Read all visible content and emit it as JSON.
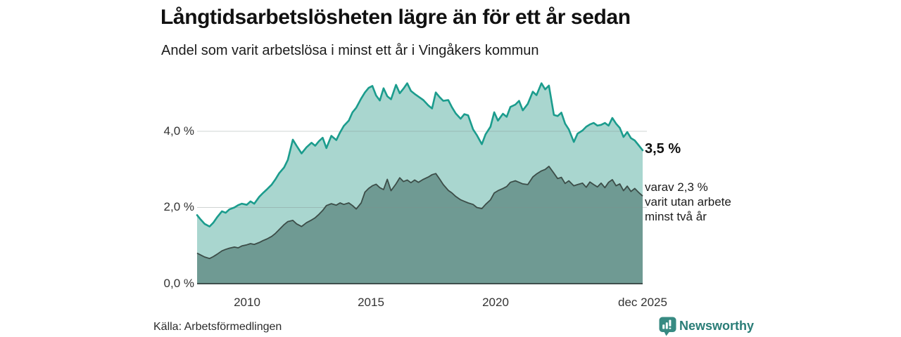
{
  "header": {
    "title": "Långtidsarbetslösheten lägre än för ett år sedan",
    "subtitle": "Andel som varit arbetslösa i minst ett år i Vingåkers kommun"
  },
  "labels": {
    "latest_total": "3,5 %",
    "annotation_lines": [
      "varav 2,3 %",
      "varit utan arbete",
      "minst två år"
    ]
  },
  "footer": {
    "source": "Källa: Arbetsförmedlingen",
    "brand": "Newsworthy"
  },
  "colors": {
    "total_line": "#1b9c8d",
    "total_fill": "#a9d6cf",
    "two_year_line": "#3c4d48",
    "two_year_fill": "#6f9a93",
    "gridline": "rgba(130,142,140,0.38)",
    "axis": "#3f4f4d",
    "brand_teal": "#2a7d77",
    "logo_bg": "#378a82"
  },
  "chart_data": {
    "type": "area",
    "title": "Långtidsarbetslösheten lägre än för ett år sedan",
    "subtitle": "Andel som varit arbetslösa i minst ett år i Vingåkers kommun",
    "unit": "%",
    "grid": true,
    "legend": "none",
    "x_range": [
      2008.0,
      2025.92
    ],
    "ylim": [
      0,
      5.6
    ],
    "x_ticks": [
      {
        "label": "2010",
        "value": 2010
      },
      {
        "label": "2015",
        "value": 2015
      },
      {
        "label": "2020",
        "value": 2020
      },
      {
        "label": "dec 2025",
        "value": 2025.92
      }
    ],
    "y_ticks": [
      {
        "label": "0,0 %",
        "value": 0
      },
      {
        "label": "2,0 %",
        "value": 2
      },
      {
        "label": "4,0 %",
        "value": 4
      }
    ],
    "series_meta": [
      {
        "name": "Arbetslösa minst ett år",
        "latest": 3.5,
        "latest_label": "3,5 %",
        "line_color": "#1b9c8d",
        "fill_color": "#a9d6cf"
      },
      {
        "name": "Arbetslösa minst två år",
        "latest": 2.3,
        "annotation": "varav 2,3 % varit utan arbete minst två år",
        "line_color": "#3c4d48",
        "fill_color": "#6f9a93"
      }
    ],
    "columns": [
      "year",
      "minst_ett_ar_pct",
      "minst_tva_ar_pct"
    ],
    "points": [
      [
        2008.0,
        1.8,
        0.8
      ],
      [
        2008.15,
        1.68,
        0.75
      ],
      [
        2008.3,
        1.57,
        0.7
      ],
      [
        2008.5,
        1.5,
        0.66
      ],
      [
        2008.65,
        1.6,
        0.71
      ],
      [
        2008.8,
        1.74,
        0.77
      ],
      [
        2009.0,
        1.9,
        0.86
      ],
      [
        2009.15,
        1.86,
        0.9
      ],
      [
        2009.3,
        1.95,
        0.93
      ],
      [
        2009.5,
        2.0,
        0.96
      ],
      [
        2009.65,
        2.06,
        0.94
      ],
      [
        2009.8,
        2.1,
        0.99
      ],
      [
        2010.0,
        2.07,
        1.02
      ],
      [
        2010.15,
        2.16,
        1.05
      ],
      [
        2010.3,
        2.1,
        1.03
      ],
      [
        2010.5,
        2.28,
        1.08
      ],
      [
        2010.65,
        2.38,
        1.13
      ],
      [
        2010.8,
        2.47,
        1.17
      ],
      [
        2011.0,
        2.6,
        1.24
      ],
      [
        2011.15,
        2.74,
        1.32
      ],
      [
        2011.3,
        2.9,
        1.42
      ],
      [
        2011.5,
        3.05,
        1.55
      ],
      [
        2011.65,
        3.25,
        1.63
      ],
      [
        2011.85,
        3.78,
        1.66
      ],
      [
        2012.0,
        3.62,
        1.57
      ],
      [
        2012.2,
        3.42,
        1.5
      ],
      [
        2012.4,
        3.58,
        1.6
      ],
      [
        2012.6,
        3.7,
        1.67
      ],
      [
        2012.75,
        3.62,
        1.73
      ],
      [
        2012.9,
        3.74,
        1.82
      ],
      [
        2013.05,
        3.83,
        1.92
      ],
      [
        2013.2,
        3.56,
        2.05
      ],
      [
        2013.4,
        3.88,
        2.1
      ],
      [
        2013.6,
        3.77,
        2.06
      ],
      [
        2013.75,
        3.97,
        2.12
      ],
      [
        2013.9,
        4.14,
        2.08
      ],
      [
        2014.1,
        4.28,
        2.12
      ],
      [
        2014.25,
        4.5,
        2.05
      ],
      [
        2014.4,
        4.62,
        1.96
      ],
      [
        2014.6,
        4.86,
        2.12
      ],
      [
        2014.75,
        5.02,
        2.4
      ],
      [
        2014.9,
        5.14,
        2.5
      ],
      [
        2015.05,
        5.19,
        2.57
      ],
      [
        2015.2,
        4.94,
        2.61
      ],
      [
        2015.35,
        4.81,
        2.52
      ],
      [
        2015.5,
        5.13,
        2.47
      ],
      [
        2015.65,
        4.92,
        2.74
      ],
      [
        2015.8,
        4.84,
        2.44
      ],
      [
        2016.0,
        5.22,
        2.62
      ],
      [
        2016.15,
        5.0,
        2.78
      ],
      [
        2016.3,
        5.12,
        2.68
      ],
      [
        2016.45,
        5.26,
        2.72
      ],
      [
        2016.6,
        5.06,
        2.65
      ],
      [
        2016.75,
        4.98,
        2.72
      ],
      [
        2016.9,
        4.91,
        2.66
      ],
      [
        2017.1,
        4.82,
        2.74
      ],
      [
        2017.3,
        4.68,
        2.8
      ],
      [
        2017.45,
        4.6,
        2.86
      ],
      [
        2017.6,
        5.02,
        2.89
      ],
      [
        2017.75,
        4.9,
        2.75
      ],
      [
        2017.9,
        4.8,
        2.6
      ],
      [
        2018.1,
        4.82,
        2.45
      ],
      [
        2018.25,
        4.63,
        2.38
      ],
      [
        2018.4,
        4.47,
        2.29
      ],
      [
        2018.6,
        4.33,
        2.2
      ],
      [
        2018.75,
        4.45,
        2.16
      ],
      [
        2018.9,
        4.42,
        2.12
      ],
      [
        2019.1,
        4.05,
        2.08
      ],
      [
        2019.25,
        3.9,
        2.0
      ],
      [
        2019.45,
        3.66,
        1.97
      ],
      [
        2019.6,
        3.92,
        2.08
      ],
      [
        2019.8,
        4.12,
        2.2
      ],
      [
        2019.95,
        4.5,
        2.38
      ],
      [
        2020.1,
        4.28,
        2.44
      ],
      [
        2020.3,
        4.46,
        2.5
      ],
      [
        2020.45,
        4.38,
        2.55
      ],
      [
        2020.6,
        4.64,
        2.66
      ],
      [
        2020.8,
        4.7,
        2.7
      ],
      [
        2020.95,
        4.8,
        2.66
      ],
      [
        2021.1,
        4.55,
        2.62
      ],
      [
        2021.3,
        4.72,
        2.6
      ],
      [
        2021.5,
        5.04,
        2.8
      ],
      [
        2021.65,
        4.95,
        2.88
      ],
      [
        2021.85,
        5.26,
        2.96
      ],
      [
        2022.0,
        5.1,
        3.0
      ],
      [
        2022.15,
        5.2,
        3.08
      ],
      [
        2022.35,
        4.43,
        2.9
      ],
      [
        2022.5,
        4.4,
        2.76
      ],
      [
        2022.65,
        4.49,
        2.79
      ],
      [
        2022.8,
        4.2,
        2.63
      ],
      [
        2022.95,
        4.05,
        2.7
      ],
      [
        2023.15,
        3.72,
        2.57
      ],
      [
        2023.3,
        3.94,
        2.6
      ],
      [
        2023.5,
        4.02,
        2.64
      ],
      [
        2023.65,
        4.12,
        2.53
      ],
      [
        2023.8,
        4.18,
        2.67
      ],
      [
        2023.95,
        4.22,
        2.6
      ],
      [
        2024.1,
        4.15,
        2.54
      ],
      [
        2024.25,
        4.17,
        2.64
      ],
      [
        2024.4,
        4.22,
        2.52
      ],
      [
        2024.55,
        4.15,
        2.66
      ],
      [
        2024.7,
        4.35,
        2.73
      ],
      [
        2024.85,
        4.2,
        2.57
      ],
      [
        2025.0,
        4.09,
        2.62
      ],
      [
        2025.15,
        3.85,
        2.44
      ],
      [
        2025.3,
        3.98,
        2.56
      ],
      [
        2025.45,
        3.82,
        2.42
      ],
      [
        2025.6,
        3.76,
        2.5
      ],
      [
        2025.75,
        3.64,
        2.4
      ],
      [
        2025.92,
        3.5,
        2.3
      ]
    ]
  }
}
